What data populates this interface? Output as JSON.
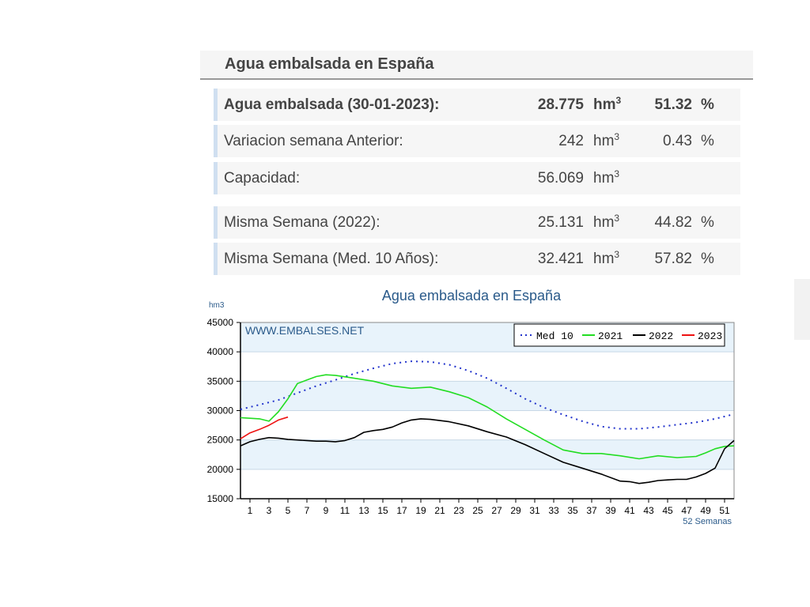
{
  "header": {
    "title": "Agua embalsada en España"
  },
  "rows": [
    {
      "label": "Agua embalsada (30-01-2023):",
      "value": "28.775",
      "unit": "hm",
      "unit_sup": "3",
      "pct": "51.32",
      "pct_sym": "%"
    },
    {
      "label": "Variacion semana Anterior:",
      "value": "242",
      "unit": "hm",
      "unit_sup": "3",
      "pct": "0.43",
      "pct_sym": "%"
    },
    {
      "label": "Capacidad:",
      "value": "56.069",
      "unit": "hm",
      "unit_sup": "3",
      "pct": "",
      "pct_sym": ""
    },
    {
      "label": "Misma Semana (2022):",
      "value": "25.131",
      "unit": "hm",
      "unit_sup": "3",
      "pct": "44.82",
      "pct_sym": "%"
    },
    {
      "label": "Misma Semana (Med. 10 Años):",
      "value": "32.421",
      "unit": "hm",
      "unit_sup": "3",
      "pct": "57.82",
      "pct_sym": "%"
    }
  ],
  "chart_data": {
    "type": "line",
    "title": "Agua embalsada en España",
    "ylabel": "hm3",
    "watermark": "WWW.EMBALSES.NET",
    "xlabel_note": "52 Semanas",
    "xlim": [
      0,
      52
    ],
    "ylim": [
      15000,
      45000
    ],
    "y_ticks": [
      15000,
      20000,
      25000,
      30000,
      35000,
      40000,
      45000
    ],
    "x_ticks": [
      1,
      3,
      5,
      7,
      9,
      11,
      13,
      15,
      17,
      19,
      21,
      23,
      25,
      27,
      29,
      31,
      33,
      35,
      37,
      39,
      41,
      43,
      45,
      47,
      49,
      51
    ],
    "legend_position": "top-right",
    "grid": true,
    "series": [
      {
        "name": "Med 10",
        "color": "#2233cc",
        "dash": true,
        "x": [
          0,
          2,
          4,
          6,
          8,
          10,
          12,
          14,
          16,
          18,
          20,
          22,
          24,
          26,
          28,
          30,
          32,
          34,
          36,
          38,
          40,
          42,
          44,
          46,
          48,
          50,
          52
        ],
        "y": [
          30200,
          31000,
          31800,
          33000,
          34200,
          35200,
          36300,
          37200,
          38000,
          38400,
          38300,
          37800,
          36800,
          35500,
          33800,
          32000,
          30500,
          29300,
          28200,
          27300,
          26900,
          26900,
          27200,
          27600,
          28000,
          28600,
          29400
        ]
      },
      {
        "name": "2021",
        "color": "#22dd22",
        "dash": false,
        "x": [
          0,
          2,
          3,
          4,
          5,
          6,
          7,
          8,
          9,
          10,
          12,
          14,
          16,
          18,
          20,
          22,
          24,
          26,
          28,
          30,
          32,
          34,
          36,
          38,
          40,
          42,
          44,
          46,
          48,
          49,
          50,
          51,
          52
        ],
        "y": [
          28800,
          28600,
          28200,
          29800,
          32000,
          34600,
          35200,
          35800,
          36100,
          36000,
          35500,
          35000,
          34200,
          33800,
          34000,
          33200,
          32200,
          30600,
          28600,
          26800,
          25000,
          23300,
          22700,
          22700,
          22300,
          21800,
          22300,
          22000,
          22200,
          22800,
          23500,
          23900,
          24000
        ]
      },
      {
        "name": "2022",
        "color": "#000000",
        "dash": false,
        "x": [
          0,
          1,
          2,
          3,
          4,
          5,
          6,
          7,
          8,
          9,
          10,
          11,
          12,
          13,
          14,
          15,
          16,
          17,
          18,
          19,
          20,
          22,
          24,
          26,
          28,
          30,
          32,
          34,
          36,
          38,
          40,
          41,
          42,
          43,
          44,
          45,
          46,
          47,
          48,
          49,
          50,
          51,
          52
        ],
        "y": [
          24000,
          24700,
          25100,
          25400,
          25300,
          25100,
          25000,
          24900,
          24800,
          24800,
          24700,
          24900,
          25400,
          26300,
          26600,
          26800,
          27200,
          27900,
          28400,
          28600,
          28500,
          28100,
          27400,
          26400,
          25500,
          24200,
          22700,
          21200,
          20200,
          19200,
          18000,
          17900,
          17600,
          17800,
          18100,
          18200,
          18300,
          18300,
          18700,
          19300,
          20200,
          23500,
          24900
        ]
      },
      {
        "name": "2023",
        "color": "#ee1111",
        "dash": false,
        "x": [
          0,
          1,
          2,
          3,
          4,
          5
        ],
        "y": [
          25200,
          26200,
          26800,
          27500,
          28400,
          28900
        ]
      }
    ]
  }
}
